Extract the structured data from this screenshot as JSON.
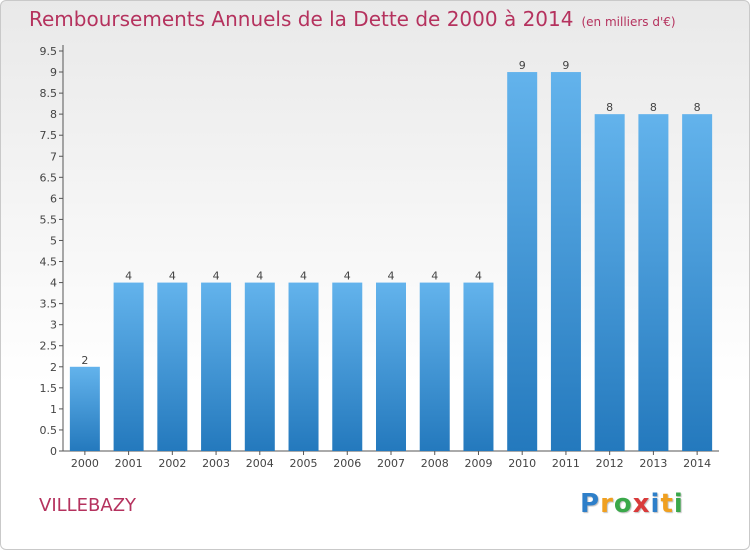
{
  "title": "Remboursements Annuels de la Dette de 2000 à 2014",
  "subtitle": "(en milliers d'€)",
  "town": "VILLEBAZY",
  "logo": {
    "letters": [
      "P",
      "r",
      "o",
      "x",
      "i",
      "t",
      "i"
    ],
    "colors": [
      "#2e7fc9",
      "#f0a020",
      "#3aa84a",
      "#d93a3a",
      "#2e7fc9",
      "#f0a020",
      "#3aa84a"
    ]
  },
  "colors": {
    "bar_top": "#63b3ec",
    "bar_bottom": "#2479bd",
    "title": "#b5325e",
    "axis": "#555555"
  },
  "chart_data": {
    "type": "bar",
    "categories": [
      "2000",
      "2001",
      "2002",
      "2003",
      "2004",
      "2005",
      "2006",
      "2007",
      "2008",
      "2009",
      "2010",
      "2011",
      "2012",
      "2013",
      "2014"
    ],
    "values": [
      2,
      4,
      4,
      4,
      4,
      4,
      4,
      4,
      4,
      4,
      9,
      9,
      8,
      8,
      8
    ],
    "data_labels": [
      "2",
      "4",
      "4",
      "4",
      "4",
      "4",
      "4",
      "4",
      "4",
      "4",
      "9",
      "9",
      "8",
      "8",
      "8"
    ],
    "yticks": [
      0,
      0.5,
      1,
      1.5,
      2,
      2.5,
      3,
      3.5,
      4,
      4.5,
      5,
      5.5,
      6,
      6.5,
      7,
      7.5,
      8,
      8.5,
      9,
      9.5
    ],
    "ytick_labels": [
      "0",
      "0.5",
      "1",
      "1.5",
      "2",
      "2.5",
      "3",
      "3.5",
      "4",
      "4.5",
      "5",
      "5.5",
      "6",
      "6.5",
      "7",
      "7.5",
      "8",
      "8.5",
      "9",
      "9.5"
    ],
    "ylim": [
      0,
      9.5
    ],
    "grid": false,
    "legend": "none"
  }
}
